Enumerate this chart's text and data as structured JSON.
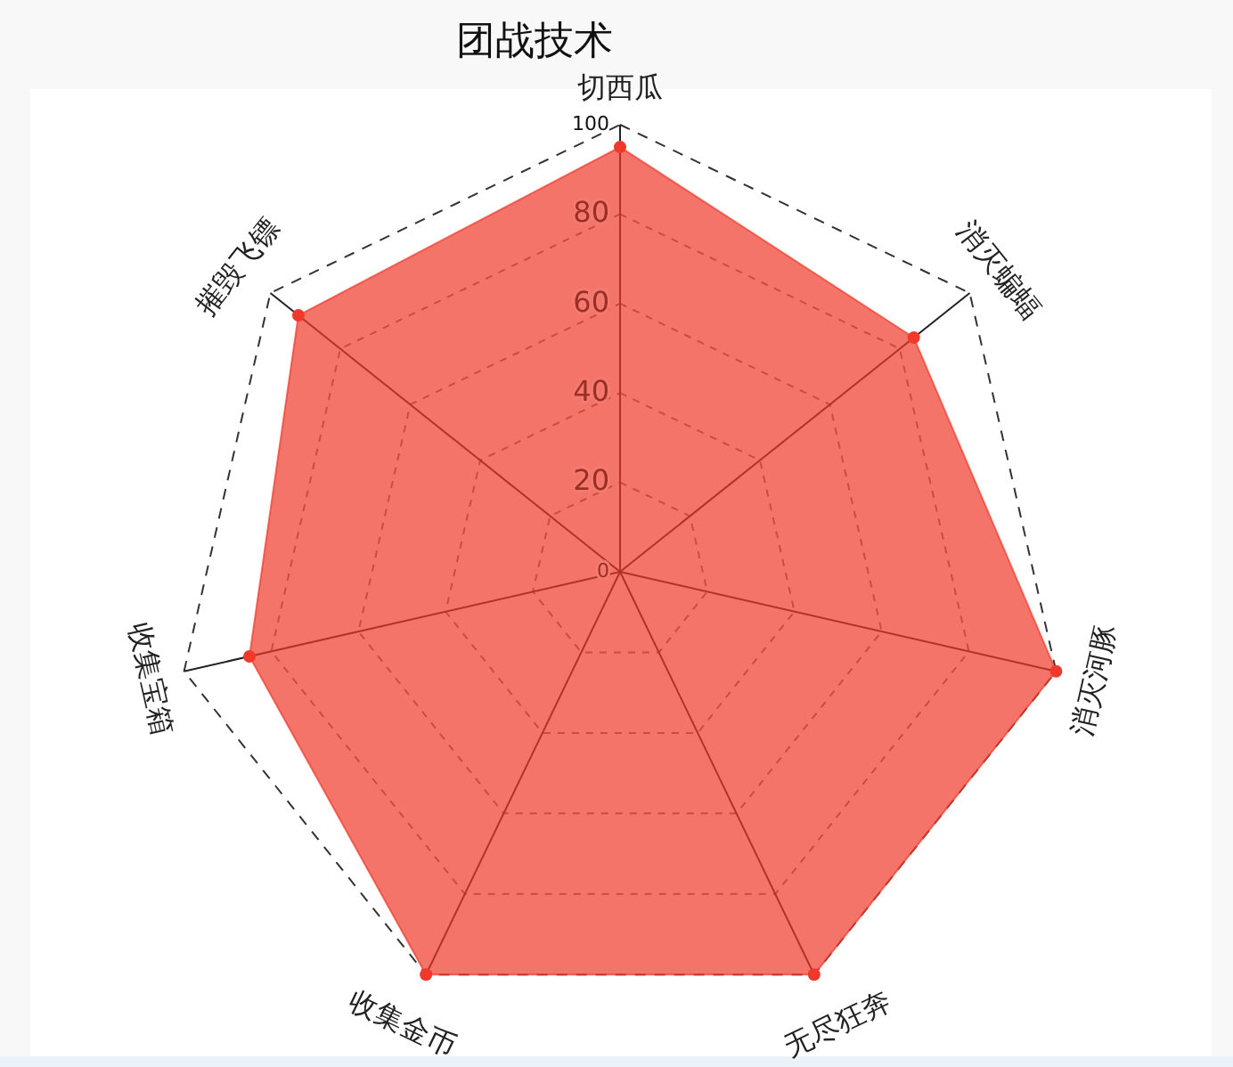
{
  "chart_data": {
    "type": "radar",
    "title": "团战技术",
    "categories": [
      "切西瓜",
      "消灭蝙蝠",
      "消灭河豚",
      "无尽狂奔",
      "收集金币",
      "收集宝箱",
      "摧毁飞镖"
    ],
    "series": [
      {
        "color": "#f0392b",
        "values": [
          95,
          84,
          100,
          100,
          100,
          85,
          92
        ]
      }
    ],
    "ylim": [
      0,
      100
    ],
    "yticks": [
      0,
      20,
      40,
      60,
      80,
      100
    ],
    "grid": true,
    "marker": "circle"
  }
}
